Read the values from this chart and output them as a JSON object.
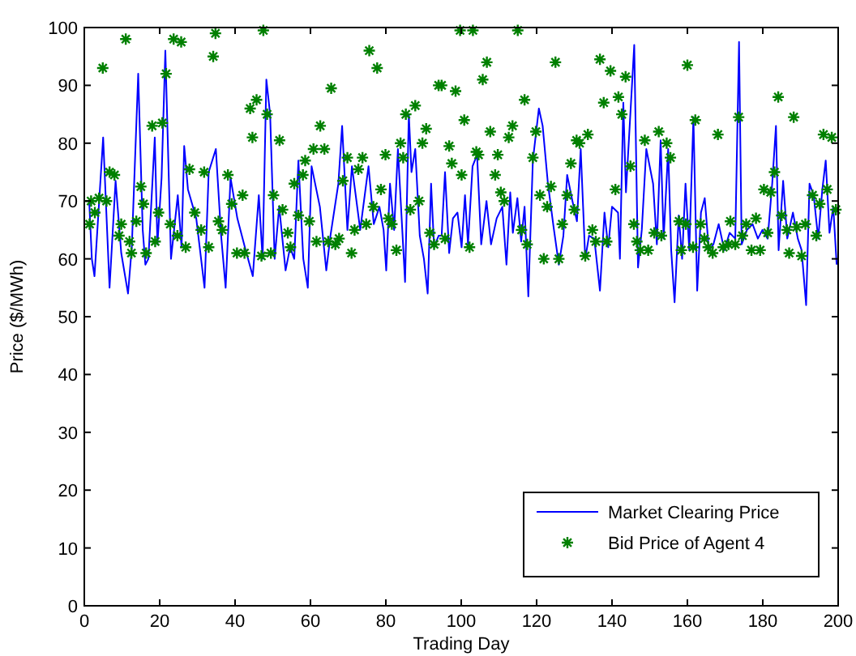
{
  "chart_data": {
    "type": "line",
    "xlabel": "Trading Day",
    "ylabel": "Price ($/MWh)",
    "xlim": [
      0,
      200
    ],
    "ylim": [
      0,
      100
    ],
    "xticks": [
      0,
      20,
      40,
      60,
      80,
      100,
      120,
      140,
      160,
      180,
      200
    ],
    "yticks": [
      0,
      10,
      20,
      30,
      40,
      50,
      60,
      70,
      80,
      90,
      100
    ],
    "legend": "bottom right",
    "series": [
      {
        "name": "Market Clearing Price",
        "color": "#0000ff",
        "marker": "none",
        "line_style": "solid",
        "x": [
          1.3,
          2,
          2.7,
          5,
          6.7,
          8.3,
          9.8,
          11.6,
          12.6,
          14.3,
          15.5,
          16.2,
          17,
          18.7,
          19.4,
          20.5,
          21.5,
          23,
          24.8,
          25.8,
          26.5,
          27.5,
          29.7,
          31.9,
          33,
          34.9,
          36.3,
          37.5,
          38.8,
          40.6,
          42.6,
          44.7,
          46.3,
          47.3,
          48.3,
          49.3,
          50.5,
          51.7,
          53.4,
          54.6,
          55.7,
          56.8,
          58.1,
          59.3,
          60.3,
          62.5,
          64.2,
          65.3,
          67.4,
          68.4,
          69.8,
          71,
          72.2,
          73.2,
          75.4,
          76.8,
          78.3,
          79.4,
          80.1,
          81.1,
          82.2,
          83.2,
          85.1,
          86.1,
          86.8,
          87.8,
          89,
          90.1,
          91.1,
          92,
          92.8,
          94,
          94.8,
          95.7,
          96.8,
          97.8,
          99,
          100.1,
          101,
          101.8,
          103,
          104.2,
          105.3,
          106.7,
          107.9,
          109.4,
          110.9,
          112,
          113,
          113.7,
          114.9,
          115.9,
          116.8,
          117.8,
          119,
          120.6,
          121.6,
          123,
          124.5,
          125.9,
          127.1,
          128.1,
          129.5,
          130.7,
          131.7,
          132.9,
          133.9,
          135.3,
          136.8,
          138,
          139,
          140,
          141.6,
          142.1,
          143,
          143.7,
          145.9,
          146.9,
          147.9,
          149.1,
          150.9,
          151.9,
          152.9,
          153.7,
          154.9,
          155.7,
          156.6,
          157.7,
          158.6,
          159.5,
          160.5,
          161.6,
          162.6,
          163.6,
          164.6,
          165.7,
          166.9,
          168.3,
          169.8,
          171.2,
          172.7,
          173.7,
          174.4,
          175.8,
          177.3,
          178.7,
          179.9,
          181.3,
          182.5,
          183.5,
          184.2,
          185.4,
          186.5,
          188,
          189.3,
          190.3,
          191.5,
          192.4,
          193.5,
          194.7,
          195.8,
          196.7,
          197.7,
          198.7,
          199.6
        ],
        "values": [
          70,
          60,
          57,
          81,
          55,
          73.5,
          61,
          54,
          62,
          92,
          65,
          59,
          60,
          81,
          62.5,
          74,
          96,
          60,
          71,
          62,
          79.5,
          72,
          67,
          55,
          75,
          79,
          64,
          55,
          74,
          67,
          62,
          57,
          71,
          60,
          91,
          85,
          60,
          69,
          58,
          62,
          60,
          77,
          60,
          55,
          76,
          69,
          58,
          64,
          73,
          83,
          65,
          76,
          70,
          65,
          76,
          66,
          69,
          65,
          58,
          73,
          65,
          79,
          56,
          85,
          75,
          79,
          64,
          60,
          54,
          73,
          62,
          64,
          64,
          75,
          61,
          67,
          68,
          62,
          71,
          62.5,
          76,
          78,
          62.5,
          70,
          62.5,
          67,
          69,
          59,
          71.5,
          64.5,
          70.5,
          63,
          69,
          53.5,
          77,
          86,
          83,
          73,
          65.5,
          59,
          64,
          74.5,
          70,
          66.5,
          79,
          60,
          64,
          63.5,
          54.5,
          68,
          62,
          69,
          68,
          60,
          87,
          71.5,
          97,
          58.5,
          65,
          79,
          73,
          62.5,
          80.5,
          63.5,
          79,
          61.5,
          52.5,
          67.5,
          60,
          73,
          61.5,
          84.5,
          54.5,
          68,
          70.5,
          61.5,
          62.5,
          66,
          61.5,
          64.5,
          63.5,
          97.5,
          62.5,
          65,
          66,
          63.5,
          65,
          63.5,
          73,
          83,
          61.5,
          73.5,
          63.5,
          68,
          63.5,
          61.5,
          52,
          73,
          71,
          63.5,
          72,
          77,
          64.5,
          69,
          59
        ]
      },
      {
        "name": "Bid Price of Agent 4",
        "color": "#008000",
        "type": "scatter",
        "marker": "cross",
        "x": [
          1.4,
          1.8,
          2.8,
          3.9,
          4.9,
          5.9,
          6.7,
          8,
          9.2,
          9.8,
          11,
          12,
          12.5,
          13.8,
          15,
          15.7,
          16.4,
          18,
          18.8,
          19.7,
          20.7,
          21.7,
          22.8,
          23.7,
          24.7,
          25.7,
          26.9,
          27.9,
          29.3,
          31,
          31.8,
          33,
          34.2,
          34.8,
          35.6,
          36.6,
          38.1,
          39.1,
          40.5,
          42,
          42.5,
          44,
          44.6,
          45.7,
          47,
          47.5,
          48.5,
          49.5,
          50.2,
          51.8,
          52.6,
          54,
          54.7,
          55.7,
          56.8,
          58,
          58.6,
          59.7,
          60.8,
          61.6,
          62.6,
          63.7,
          64.7,
          65.5,
          66.6,
          67.6,
          68.6,
          69.8,
          70.9,
          71.7,
          72.7,
          73.8,
          74.8,
          75.6,
          76.7,
          77.7,
          78.7,
          79.9,
          80.7,
          81.6,
          82.8,
          83.9,
          84.6,
          85.3,
          86.5,
          87.8,
          88.8,
          89.7,
          90.7,
          91.7,
          92.8,
          94,
          94.8,
          95.7,
          96.8,
          97.5,
          98.5,
          99.7,
          100.1,
          100.8,
          102.2,
          103.1,
          104,
          104.6,
          105.7,
          106.8,
          107.7,
          109,
          109.7,
          110.5,
          111.4,
          112.6,
          113.6,
          115,
          116,
          116.8,
          117.5,
          119,
          119.8,
          120.9,
          121.9,
          122.8,
          123.8,
          125,
          125.9,
          126.8,
          128.1,
          129.1,
          130,
          130.6,
          131.4,
          132.9,
          133.6,
          134.8,
          135.7,
          136.8,
          137.8,
          138.6,
          139.6,
          140.9,
          141.7,
          142.6,
          143.6,
          144.9,
          145.8,
          146.6,
          147.5,
          148.7,
          149.6,
          151.2,
          152.4,
          153.1,
          154.5,
          155.5,
          157.8,
          158.4,
          159.6,
          160,
          161.5,
          162.1,
          163.5,
          164.5,
          165.5,
          166.7,
          168.1,
          169.5,
          170.9,
          171.4,
          172.7,
          173.6,
          174.6,
          175.6,
          177,
          178.2,
          179.3,
          180.3,
          181.3,
          182.1,
          183.1,
          184.1,
          185,
          186.4,
          187,
          188.2,
          189,
          190.3,
          191.3,
          193.2,
          194.2,
          195.1,
          196.1,
          197.1,
          198.3,
          199.4
        ],
        "values": [
          66,
          70,
          68,
          70.5,
          93,
          70,
          75,
          74.5,
          64,
          66,
          98,
          63,
          61,
          66.5,
          72.5,
          69.5,
          61,
          83,
          63,
          68,
          83.5,
          92,
          66,
          98,
          64,
          97.5,
          62,
          75.5,
          68,
          65,
          75,
          62,
          95,
          99,
          66.5,
          65,
          74.5,
          69.5,
          61,
          71,
          61,
          86,
          81,
          87.5,
          60.5,
          99.5,
          85,
          61,
          71,
          80.5,
          68.5,
          64.5,
          62,
          73,
          67.5,
          74.5,
          77,
          66.5,
          79,
          63,
          83,
          79,
          63,
          89.5,
          62.5,
          63.5,
          73.5,
          77.5,
          61,
          65,
          75.5,
          77.5,
          66,
          96,
          69,
          93,
          72,
          78,
          67,
          66,
          61.5,
          80,
          77.5,
          85,
          68.5,
          86.5,
          70,
          80,
          82.5,
          64.5,
          62.5,
          90,
          90,
          63.5,
          79.5,
          76.5,
          89,
          99.5,
          74.5,
          84,
          62,
          99.5,
          78.5,
          78,
          91,
          94,
          82,
          74.5,
          78,
          71.5,
          70,
          81,
          83,
          99.5,
          65,
          87.5,
          62.5,
          77.5,
          82,
          71,
          60,
          69,
          72.5,
          94,
          60,
          66,
          71,
          76.5,
          68.5,
          80.5,
          80,
          60.5,
          81.5,
          65,
          63,
          94.5,
          87,
          63,
          92.5,
          72,
          88,
          85,
          91.5,
          76,
          66,
          63,
          61.5,
          80.5,
          61.5,
          64.5,
          82,
          64,
          80,
          77.5,
          66.5,
          61.5,
          66,
          93.5,
          62,
          84,
          66,
          63.5,
          62,
          61,
          81.5,
          62,
          62.5,
          66.5,
          62.5,
          84.5,
          64,
          66,
          61.5,
          67,
          61.5,
          72,
          64.5,
          71.5,
          75,
          88,
          67.5,
          65,
          61,
          84.5,
          65.5,
          60.5,
          66,
          71,
          64,
          69.5,
          81.5,
          72,
          81,
          68.5
        ]
      }
    ]
  }
}
